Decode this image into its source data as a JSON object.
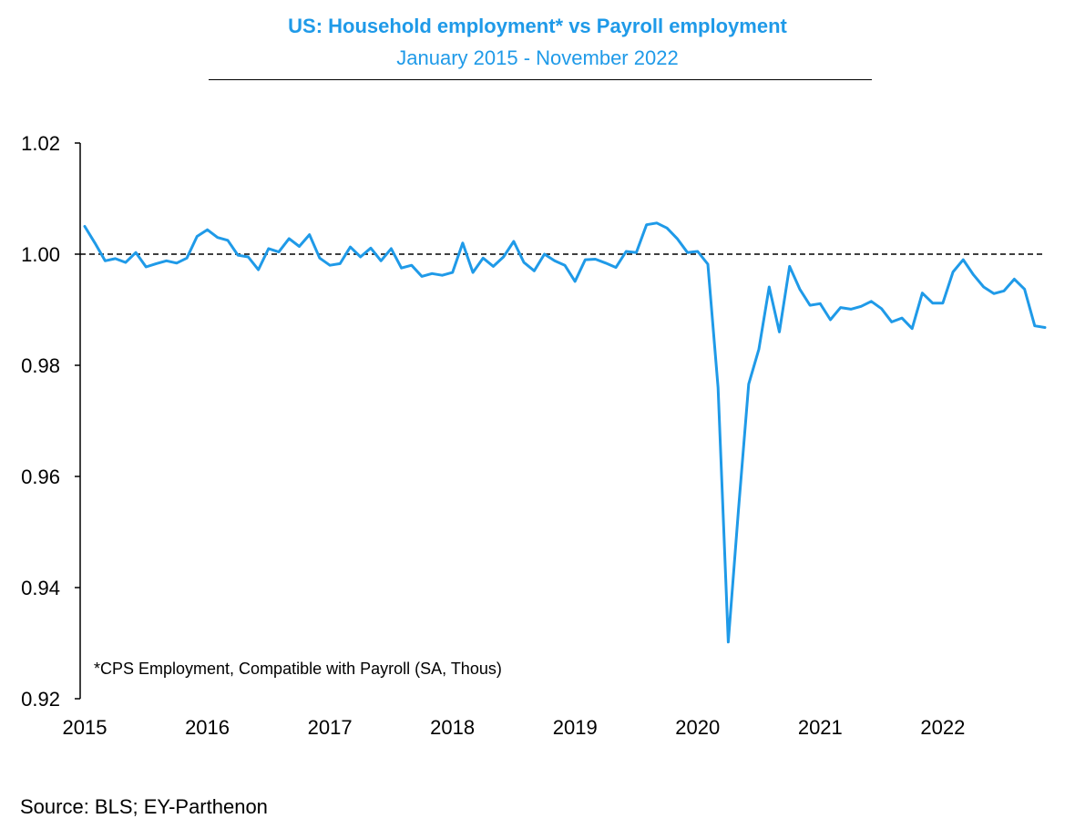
{
  "header": {
    "title": "US: Household employment*  vs Payroll employment",
    "subtitle": "January 2015 - November 2022"
  },
  "footnote": "*CPS Employment, Compatible with Payroll (SA, Thous)",
  "source": "Source: BLS; EY-Parthenon",
  "colors": {
    "series": "#1f9ae8",
    "title": "#1f9ae8",
    "reference": "#000000"
  },
  "chart_data": {
    "type": "line",
    "title": "US: Household employment*  vs Payroll employment",
    "subtitle": "January 2015 - November 2022",
    "xlabel": "",
    "ylabel": "",
    "x_start": "2015-01",
    "x_end": "2022-11",
    "x_ticks": [
      "2015",
      "2016",
      "2017",
      "2018",
      "2019",
      "2020",
      "2021",
      "2022"
    ],
    "y_ticks": [
      "0.92",
      "0.94",
      "0.96",
      "0.98",
      "1.00",
      "1.02"
    ],
    "ylim": [
      0.92,
      1.02
    ],
    "reference_line": {
      "y": 1.0,
      "style": "dashed"
    },
    "grid": false,
    "legend": "none",
    "series": [
      {
        "values": [
          1.005,
          1.002,
          0.9988,
          0.9992,
          0.9985,
          1.0003,
          0.9977,
          0.9983,
          0.9988,
          0.9984,
          0.9993,
          1.0032,
          1.0044,
          1.003,
          1.0025,
          0.9998,
          0.9995,
          0.9972,
          1.001,
          1.0004,
          1.0028,
          1.0014,
          1.0035,
          0.9993,
          0.998,
          0.9983,
          1.0013,
          0.9995,
          1.0011,
          0.9988,
          1.001,
          0.9975,
          0.998,
          0.996,
          0.9965,
          0.9962,
          0.9967,
          1.002,
          0.9967,
          0.9993,
          0.9978,
          0.9995,
          1.0023,
          0.9985,
          0.997,
          1.0,
          0.9988,
          0.998,
          0.9951,
          0.999,
          0.9991,
          0.9984,
          0.9976,
          1.0005,
          1.0003,
          1.0053,
          1.0056,
          1.0047,
          1.0028,
          1.0003,
          1.0005,
          0.9982,
          0.976,
          0.9302,
          0.954,
          0.9766,
          0.9829,
          0.9941,
          0.986,
          0.9978,
          0.9937,
          0.9908,
          0.9911,
          0.9882,
          0.9904,
          0.9901,
          0.9906,
          0.9915,
          0.9902,
          0.9878,
          0.9885,
          0.9866,
          0.993,
          0.9912,
          0.9912,
          0.9968,
          0.999,
          0.9963,
          0.9941,
          0.9929,
          0.9934,
          0.9955,
          0.9937,
          0.9871,
          0.9868
        ]
      }
    ]
  }
}
